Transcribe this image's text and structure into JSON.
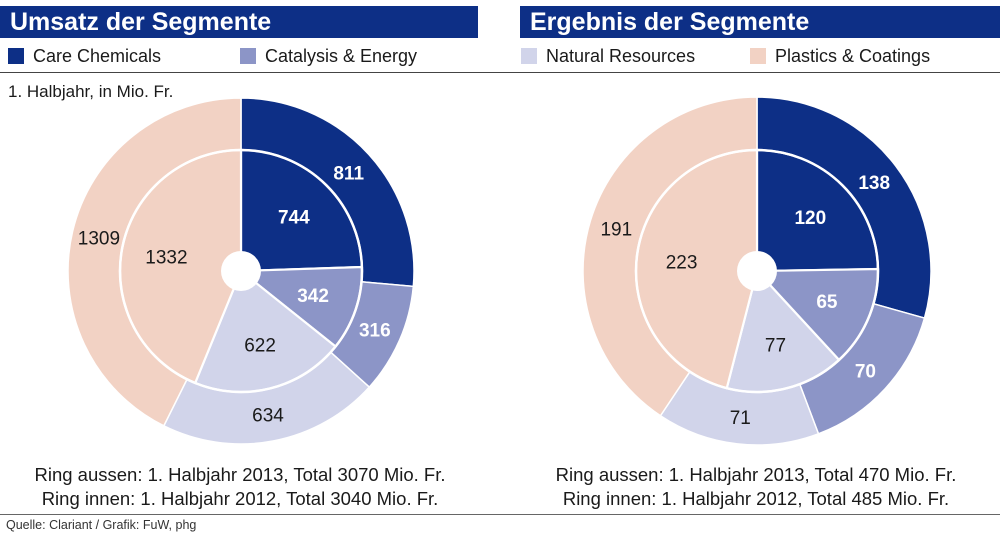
{
  "colors": {
    "care": "#0d2f86",
    "catalysis": "#8c95c7",
    "natural": "#d1d4ea",
    "plastics": "#f2d2c4",
    "title_bg": "#0d2f86"
  },
  "header": {
    "left_title": "Umsatz der Segmente",
    "right_title": "Ergebnis der Segmente"
  },
  "legend": [
    {
      "label": "Care Chemicals",
      "color": "#0d2f86"
    },
    {
      "label": "Catalysis & Energy",
      "color": "#8c95c7"
    },
    {
      "label": "Natural Resources",
      "color": "#d1d4ea"
    },
    {
      "label": "Plastics & Coatings",
      "color": "#f2d2c4"
    }
  ],
  "subtitle": "1. Halbjahr, in Mio. Fr.",
  "source": "Quelle: Clariant / Grafik: FuW, phg",
  "chart_data": [
    {
      "type": "pie",
      "variant": "nested-donut",
      "title": "Umsatz der Segmente",
      "categories": [
        "Care Chemicals",
        "Catalysis & Energy",
        "Natural Resources",
        "Plastics & Coatings"
      ],
      "outer": {
        "name": "1. Halbjahr 2013",
        "values": [
          811,
          316,
          634,
          1309
        ]
      },
      "inner": {
        "name": "1. Halbjahr 2012",
        "values": [
          744,
          342,
          622,
          1332
        ]
      },
      "notes": [
        "Ring aussen: 1. Halbjahr 2013, Total 3070 Mio. Fr.",
        "Ring innen: 1. Halbjahr 2012, Total 3040 Mio. Fr."
      ]
    },
    {
      "type": "pie",
      "variant": "nested-donut",
      "title": "Ergebnis der Segmente",
      "categories": [
        "Care Chemicals",
        "Catalysis & Energy",
        "Natural Resources",
        "Plastics & Coatings"
      ],
      "outer": {
        "name": "1. Halbjahr 2013",
        "values": [
          138,
          70,
          71,
          191
        ]
      },
      "inner": {
        "name": "1. Halbjahr 2012",
        "values": [
          120,
          65,
          77,
          223
        ]
      },
      "notes": [
        "Ring aussen: 1. Halbjahr 2013, Total 470 Mio. Fr.",
        "Ring innen: 1. Halbjahr 2012, Total 485 Mio. Fr."
      ]
    }
  ]
}
